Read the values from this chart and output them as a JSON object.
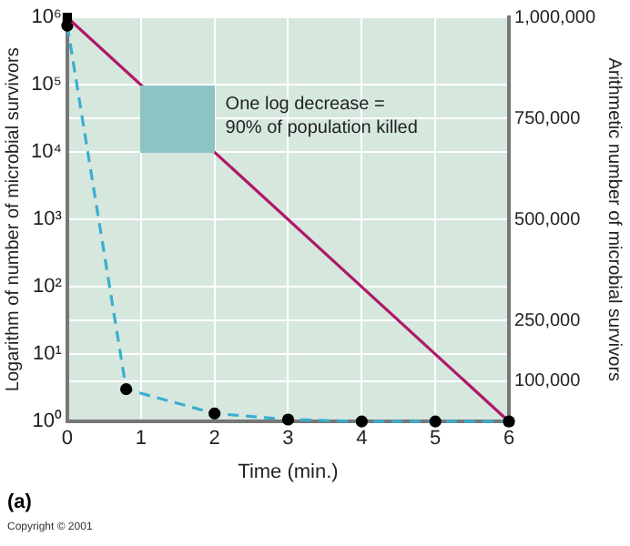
{
  "chart_data": {
    "type": "line",
    "xlabel": "Time (min.)",
    "ylabel": "Logarithm of number of microbial survivors",
    "y2label": "Arithmetic number of microbial survivors",
    "xlim": [
      0,
      6
    ],
    "xticks": [
      0,
      1,
      2,
      3,
      4,
      5,
      6
    ],
    "log": "y",
    "ylim": [
      1,
      1000000
    ],
    "yticks": [
      {
        "value": 1,
        "label": "10⁰"
      },
      {
        "value": 10,
        "label": "10¹"
      },
      {
        "value": 100,
        "label": "10²"
      },
      {
        "value": 1000,
        "label": "10³"
      },
      {
        "value": 10000,
        "label": "10⁴"
      },
      {
        "value": 100000,
        "label": "10⁵"
      },
      {
        "value": 1000000,
        "label": "10⁶"
      }
    ],
    "y2lim": [
      0,
      1000000
    ],
    "y2ticks": [
      {
        "value": 100000,
        "label": "100,000"
      },
      {
        "value": 250000,
        "label": "250,000"
      },
      {
        "value": 500000,
        "label": "500,000"
      },
      {
        "value": 750000,
        "label": "750,000"
      },
      {
        "value": 1000000,
        "label": "1,000,000"
      }
    ],
    "grid": true,
    "legend": false,
    "series": [
      {
        "color": "#b0186a",
        "x": [
          0,
          6
        ],
        "values": [
          1000000,
          1
        ],
        "marker": "square",
        "line_style": "solid"
      },
      {
        "color": "#3aaed0",
        "axis": "y2",
        "x": [
          0,
          0.8,
          2,
          3,
          4,
          5,
          6
        ],
        "values": [
          980000,
          80000,
          20000,
          5000,
          0,
          0,
          0
        ],
        "marker": "circle",
        "line_style": "dashed"
      }
    ],
    "annotations": [
      "One log decrease =\n90% of population killed",
      "(a)",
      "Copyright © 2001"
    ]
  }
}
